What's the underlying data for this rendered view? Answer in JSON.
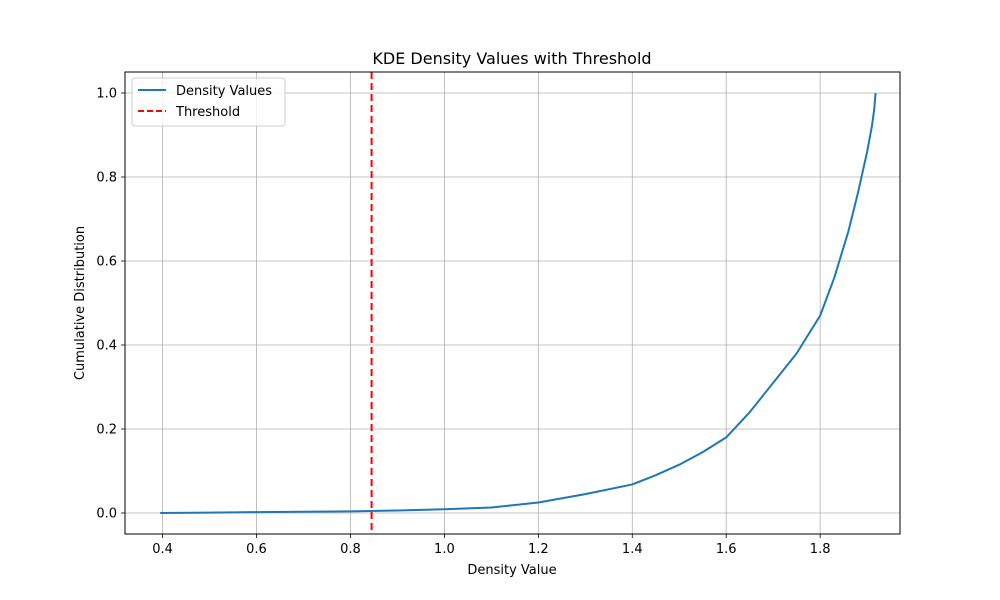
{
  "chart_data": {
    "type": "line",
    "title": "KDE Density Values with Threshold",
    "xlabel": "Density Value",
    "ylabel": "Cumulative Distribution",
    "xlim": [
      0.32,
      1.97
    ],
    "ylim": [
      -0.05,
      1.05
    ],
    "xticks": [
      0.4,
      0.6,
      0.8,
      1.0,
      1.2,
      1.4,
      1.6,
      1.8
    ],
    "xtick_labels": [
      "0.4",
      "0.6",
      "0.8",
      "1.0",
      "1.2",
      "1.4",
      "1.6",
      "1.8"
    ],
    "yticks": [
      0.0,
      0.2,
      0.4,
      0.6,
      0.8,
      1.0
    ],
    "ytick_labels": [
      "0.0",
      "0.2",
      "0.4",
      "0.6",
      "0.8",
      "1.0"
    ],
    "grid": true,
    "legend_position": "top-left",
    "series": [
      {
        "name": "Density Values",
        "color": "#1f77b4",
        "style": "solid",
        "x": [
          0.395,
          0.5,
          0.6,
          0.7,
          0.8,
          0.9,
          1.0,
          1.1,
          1.2,
          1.3,
          1.4,
          1.45,
          1.5,
          1.55,
          1.6,
          1.65,
          1.7,
          1.75,
          1.8,
          1.83,
          1.86,
          1.88,
          1.9,
          1.91,
          1.915,
          1.918
        ],
        "y": [
          0.0,
          0.001,
          0.002,
          0.003,
          0.004,
          0.006,
          0.009,
          0.013,
          0.025,
          0.045,
          0.068,
          0.09,
          0.115,
          0.145,
          0.18,
          0.24,
          0.31,
          0.38,
          0.47,
          0.56,
          0.67,
          0.76,
          0.86,
          0.92,
          0.96,
          1.0
        ]
      }
    ],
    "threshold": {
      "name": "Threshold",
      "x": 0.845,
      "color": "#ff0000",
      "style": "dashed"
    }
  }
}
